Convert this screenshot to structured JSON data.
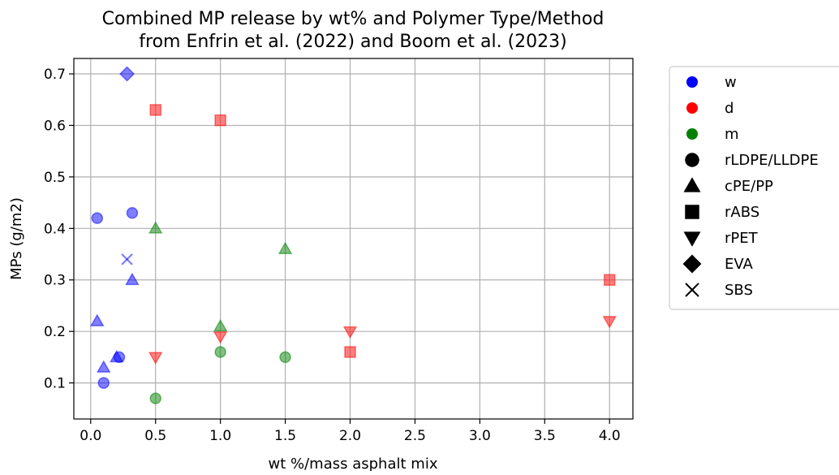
{
  "chart_data": {
    "type": "scatter",
    "title_line1": "Combined MP release by wt% and Polymer Type/Method",
    "title_line2": "from Enfrin et al. (2022) and Boom et al. (2023)",
    "xlabel": "wt %/mass asphalt mix",
    "ylabel": "MPs (g/m2)",
    "xlim": [
      -0.13,
      4.18
    ],
    "ylim": [
      0.03,
      0.73
    ],
    "xticks": [
      0.0,
      0.5,
      1.0,
      1.5,
      2.0,
      2.5,
      3.0,
      3.5,
      4.0
    ],
    "xtick_labels": [
      "0.0",
      "0.5",
      "1.0",
      "1.5",
      "2.0",
      "2.5",
      "3.0",
      "3.5",
      "4.0"
    ],
    "yticks": [
      0.1,
      0.2,
      0.3,
      0.4,
      0.5,
      0.6,
      0.7
    ],
    "ytick_labels": [
      "0.1",
      "0.2",
      "0.3",
      "0.4",
      "0.5",
      "0.6",
      "0.7"
    ],
    "grid": true,
    "legend_placement": "outside-right",
    "methods": [
      {
        "key": "w",
        "label": "w",
        "color": "#0000ff"
      },
      {
        "key": "d",
        "label": "d",
        "color": "#ff0000"
      },
      {
        "key": "m",
        "label": "m",
        "color": "#008000"
      }
    ],
    "polymers": [
      {
        "key": "circle",
        "label": "rLDPE/LLDPE"
      },
      {
        "key": "triangle-up",
        "label": "cPE/PP"
      },
      {
        "key": "square",
        "label": "rABS"
      },
      {
        "key": "triangle-down",
        "label": "rPET"
      },
      {
        "key": "diamond",
        "label": "EVA"
      },
      {
        "key": "x",
        "label": "SBS"
      }
    ],
    "points": [
      {
        "x": 0.05,
        "y": 0.42,
        "method": "w",
        "marker": "circle"
      },
      {
        "x": 0.32,
        "y": 0.43,
        "method": "w",
        "marker": "circle"
      },
      {
        "x": 0.22,
        "y": 0.15,
        "method": "w",
        "marker": "circle"
      },
      {
        "x": 0.1,
        "y": 0.1,
        "method": "w",
        "marker": "circle"
      },
      {
        "x": 0.05,
        "y": 0.22,
        "method": "w",
        "marker": "triangle-up"
      },
      {
        "x": 0.32,
        "y": 0.3,
        "method": "w",
        "marker": "triangle-up"
      },
      {
        "x": 0.1,
        "y": 0.13,
        "method": "w",
        "marker": "triangle-up"
      },
      {
        "x": 0.2,
        "y": 0.15,
        "method": "w",
        "marker": "triangle-up"
      },
      {
        "x": 0.28,
        "y": 0.7,
        "method": "w",
        "marker": "diamond"
      },
      {
        "x": 0.28,
        "y": 0.34,
        "method": "w",
        "marker": "x"
      },
      {
        "x": 0.5,
        "y": 0.63,
        "method": "d",
        "marker": "square"
      },
      {
        "x": 1.0,
        "y": 0.61,
        "method": "d",
        "marker": "square"
      },
      {
        "x": 2.0,
        "y": 0.16,
        "method": "d",
        "marker": "square"
      },
      {
        "x": 4.0,
        "y": 0.3,
        "method": "d",
        "marker": "square"
      },
      {
        "x": 0.5,
        "y": 0.15,
        "method": "d",
        "marker": "triangle-down"
      },
      {
        "x": 1.0,
        "y": 0.19,
        "method": "d",
        "marker": "triangle-down"
      },
      {
        "x": 2.0,
        "y": 0.2,
        "method": "d",
        "marker": "triangle-down"
      },
      {
        "x": 4.0,
        "y": 0.22,
        "method": "d",
        "marker": "triangle-down"
      },
      {
        "x": 0.5,
        "y": 0.4,
        "method": "m",
        "marker": "triangle-up"
      },
      {
        "x": 1.5,
        "y": 0.36,
        "method": "m",
        "marker": "triangle-up"
      },
      {
        "x": 1.0,
        "y": 0.21,
        "method": "m",
        "marker": "triangle-up"
      },
      {
        "x": 1.0,
        "y": 0.16,
        "method": "m",
        "marker": "circle"
      },
      {
        "x": 1.5,
        "y": 0.15,
        "method": "m",
        "marker": "circle"
      },
      {
        "x": 0.5,
        "y": 0.07,
        "method": "m",
        "marker": "circle"
      }
    ]
  }
}
